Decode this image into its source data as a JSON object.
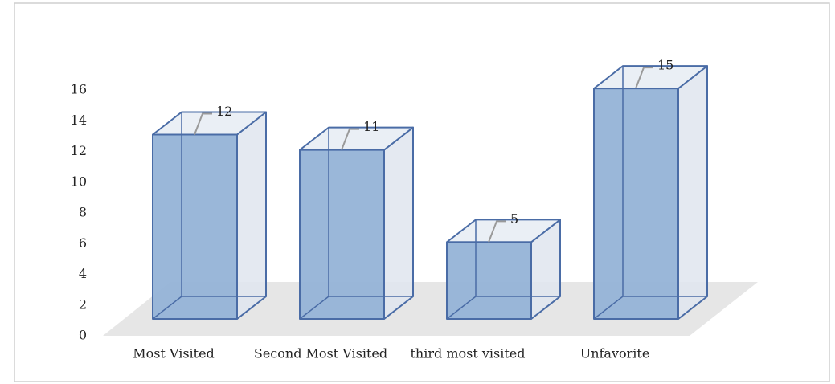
{
  "chart_data": {
    "type": "bar3d",
    "categories": [
      "Most Visited",
      "Second Most Visited",
      "third most visited",
      "Unfavorite"
    ],
    "values": [
      12,
      11,
      5,
      15
    ],
    "color": "#95b3d7",
    "ylim": [
      0,
      16
    ],
    "yticks": [
      0,
      2,
      4,
      6,
      8,
      10,
      12,
      14,
      16
    ]
  }
}
